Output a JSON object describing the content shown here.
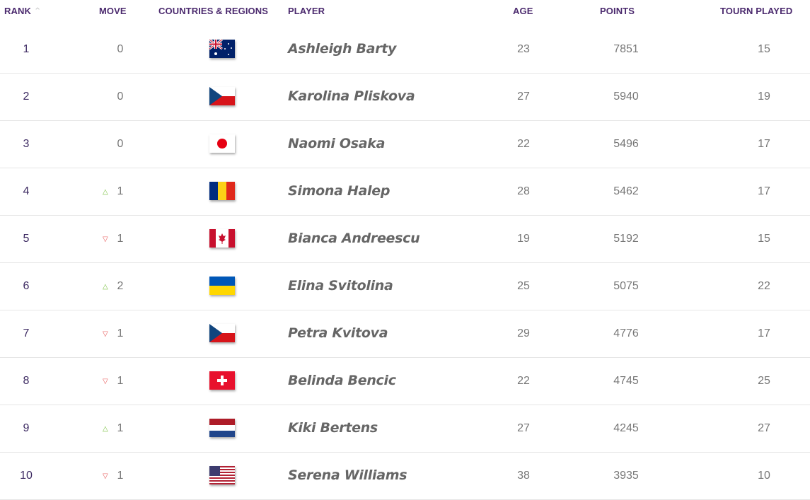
{
  "header": {
    "rank": "RANK",
    "move": "MOVE",
    "country": "COUNTRIES & REGIONS",
    "player": "PLAYER",
    "age": "AGE",
    "points": "POINTS",
    "tourn": "TOURN PLAYED",
    "sort_icon": "chevron-up-icon"
  },
  "colors": {
    "header": "#4b2a6e",
    "up": "#7cc243",
    "down": "#e85b5b"
  },
  "rows": [
    {
      "rank": "1",
      "dir": "none",
      "move": "0",
      "flag": "AUS",
      "player": "Ashleigh Barty",
      "age": "23",
      "points": "7851",
      "tourn": "15"
    },
    {
      "rank": "2",
      "dir": "none",
      "move": "0",
      "flag": "CZE",
      "player": "Karolina Pliskova",
      "age": "27",
      "points": "5940",
      "tourn": "19"
    },
    {
      "rank": "3",
      "dir": "none",
      "move": "0",
      "flag": "JPN",
      "player": "Naomi Osaka",
      "age": "22",
      "points": "5496",
      "tourn": "17"
    },
    {
      "rank": "4",
      "dir": "up",
      "move": "1",
      "flag": "ROU",
      "player": "Simona Halep",
      "age": "28",
      "points": "5462",
      "tourn": "17"
    },
    {
      "rank": "5",
      "dir": "down",
      "move": "1",
      "flag": "CAN",
      "player": "Bianca Andreescu",
      "age": "19",
      "points": "5192",
      "tourn": "15"
    },
    {
      "rank": "6",
      "dir": "up",
      "move": "2",
      "flag": "UKR",
      "player": "Elina Svitolina",
      "age": "25",
      "points": "5075",
      "tourn": "22"
    },
    {
      "rank": "7",
      "dir": "down",
      "move": "1",
      "flag": "CZE",
      "player": "Petra Kvitova",
      "age": "29",
      "points": "4776",
      "tourn": "17"
    },
    {
      "rank": "8",
      "dir": "down",
      "move": "1",
      "flag": "SUI",
      "player": "Belinda Bencic",
      "age": "22",
      "points": "4745",
      "tourn": "25"
    },
    {
      "rank": "9",
      "dir": "up",
      "move": "1",
      "flag": "NED",
      "player": "Kiki Bertens",
      "age": "27",
      "points": "4245",
      "tourn": "27"
    },
    {
      "rank": "10",
      "dir": "down",
      "move": "1",
      "flag": "USA",
      "player": "Serena Williams",
      "age": "38",
      "points": "3935",
      "tourn": "10"
    }
  ]
}
